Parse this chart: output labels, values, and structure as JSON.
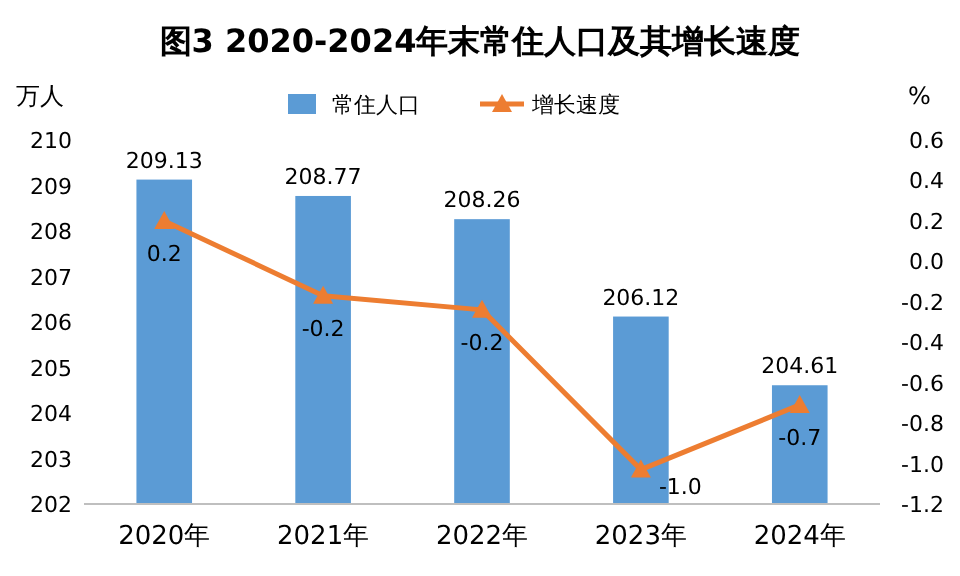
{
  "chart_data": {
    "type": "bar",
    "title": "图3  2020-2024年末常住人口及其增长速度",
    "ylabel": "万人",
    "y2label": "%",
    "categories": [
      "2020年",
      "2021年",
      "2022年",
      "2023年",
      "2024年"
    ],
    "series": [
      {
        "name": "常住人口",
        "color": "#5b9bd5",
        "values": [
          209.13,
          208.77,
          208.26,
          206.12,
          204.61
        ],
        "value_labels": [
          "209.13",
          "208.77",
          "208.26",
          "206.12",
          "204.61"
        ]
      },
      {
        "name": "增长速度",
        "type": "line",
        "axis": "y2",
        "color": "#ed7d31",
        "marker": "triangle",
        "values": [
          0.2,
          -0.17,
          -0.24,
          -1.03,
          -0.71
        ],
        "value_labels": [
          "0.2",
          "-0.2",
          "-0.2",
          "-1.0",
          "-0.7"
        ]
      }
    ],
    "ylim": [
      202,
      210
    ],
    "yticks": [
      202,
      203,
      204,
      205,
      206,
      207,
      208,
      209,
      210
    ],
    "y2lim": [
      -1.2,
      0.6
    ],
    "y2ticks": [
      {
        "value": -1.2,
        "label": "-1.2"
      },
      {
        "value": -1,
        "label": "-1.0"
      },
      {
        "value": -0.8,
        "label": "-0.8"
      },
      {
        "value": -0.6,
        "label": "-0.6"
      },
      {
        "value": -0.4,
        "label": "-0.4"
      },
      {
        "value": -0.2,
        "label": "-0.2"
      },
      {
        "value": 0,
        "label": "0.0"
      },
      {
        "value": 0.2,
        "label": "0.2"
      },
      {
        "value": 0.4,
        "label": "0.4"
      },
      {
        "value": 0.6,
        "label": "0.6"
      }
    ],
    "legend": "top"
  }
}
